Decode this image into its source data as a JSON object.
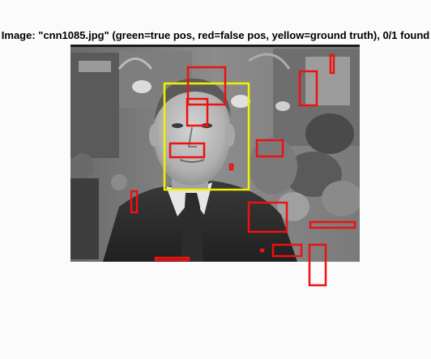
{
  "figure": {
    "title": "Image: \"cnn1085.jpg\" (green=true pos, red=false pos, yellow=ground truth), 0/1 found"
  },
  "legend_colors": {
    "true_pos": "#00c000",
    "false_pos": "#ee1111",
    "ground_truth": "#f2f200"
  },
  "photo": {
    "description_icon": "grayscale-news-photo"
  }
}
